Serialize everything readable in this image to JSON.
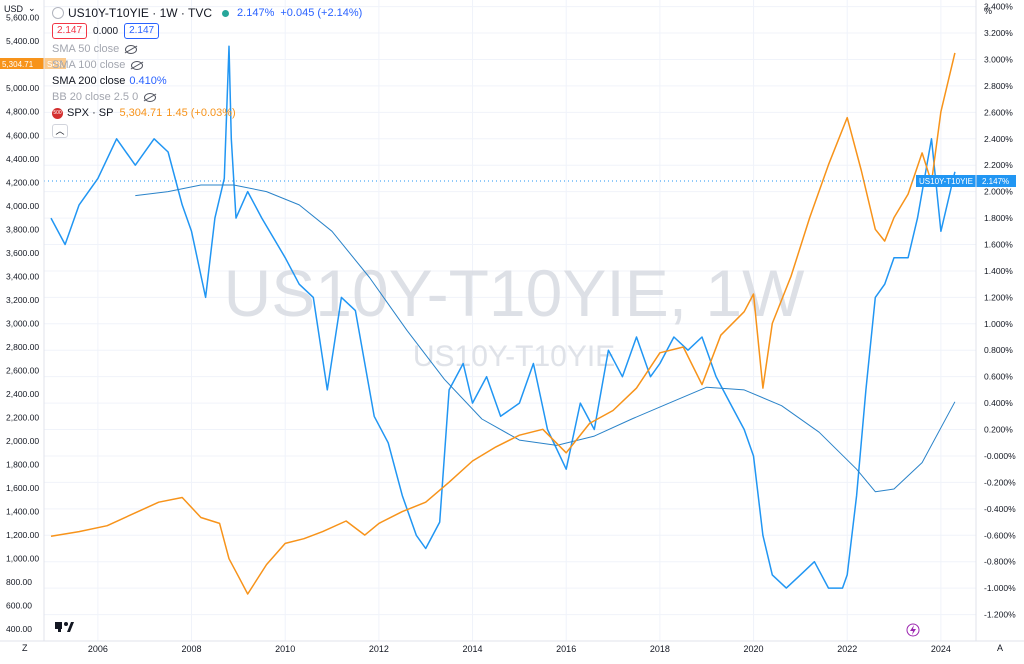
{
  "header": {
    "currency_label": "USD",
    "percent_label": "%",
    "symbol_title": "US10Y-T10YIE · 1W · TVC",
    "last_value": "2.147%",
    "change": "+0.045 (+2.14%)",
    "sell_price": "2.147",
    "spread": "0.000",
    "buy_price": "2.147"
  },
  "indicators": {
    "sma50": "SMA 50 close",
    "sma100": "SMA 100 close",
    "sma200": "SMA 200 close",
    "sma200_value": "0.410%",
    "bb": "BB 20 close 2.5 0",
    "spx_label": "SPX · SP",
    "spx_value": "5,304.71",
    "spx_change": "1.45 (+0.03%)"
  },
  "watermark": {
    "big": "US10Y-T10YIE, 1W",
    "small": "US10Y-T10YIE"
  },
  "price_tags": {
    "left_value": "5,304.71",
    "left_label": "SPX",
    "right_label": "US10Y-T10YIE",
    "right_value": "2.147%"
  },
  "footer": {
    "z_label": "Z",
    "a_label": "A"
  },
  "colors": {
    "blue_series": "#2196f3",
    "orange_series": "#f7931a",
    "sma_line": "#2a83c9",
    "grid": "#f0f3fa"
  },
  "chart_data": {
    "type": "line",
    "title": "US10Y-T10YIE · 1W · TVC",
    "x_ticks": [
      "2006",
      "2008",
      "2010",
      "2012",
      "2014",
      "2016",
      "2018",
      "2020",
      "2022",
      "2024"
    ],
    "left_axis": {
      "label": "USD",
      "range": [
        300,
        5750
      ],
      "ticks": [
        "400.00",
        "600.00",
        "800.00",
        "1,000.00",
        "1,200.00",
        "1,400.00",
        "1,600.00",
        "1,800.00",
        "2,000.00",
        "2,200.00",
        "2,400.00",
        "2,600.00",
        "2,800.00",
        "3,000.00",
        "3,200.00",
        "3,400.00",
        "3,600.00",
        "3,800.00",
        "4,000.00",
        "4,200.00",
        "4,400.00",
        "4,600.00",
        "4,800.00",
        "5,000.00",
        "5,200.00",
        "5,400.00",
        "5,600.00"
      ]
    },
    "right_axis": {
      "label": "%",
      "range": [
        -1.4,
        3.45
      ],
      "ticks": [
        "-1.200%",
        "-1.000%",
        "-0.800%",
        "-0.600%",
        "-0.400%",
        "-0.200%",
        "-0.000%",
        "0.200%",
        "0.400%",
        "0.600%",
        "0.800%",
        "1.000%",
        "1.200%",
        "1.400%",
        "1.600%",
        "1.800%",
        "2.000%",
        "2.200%",
        "2.400%",
        "2.600%",
        "2.800%",
        "3.000%",
        "3.200%",
        "3.400%"
      ]
    },
    "grid": true,
    "series": [
      {
        "name": "US10Y-T10YIE",
        "axis": "right",
        "x": [
          2005.0,
          2005.3,
          2005.6,
          2006.0,
          2006.4,
          2006.8,
          2007.2,
          2007.5,
          2007.8,
          2008.0,
          2008.3,
          2008.5,
          2008.7,
          2008.8,
          2008.85,
          2008.95,
          2009.2,
          2009.5,
          2010.0,
          2010.3,
          2010.6,
          2010.9,
          2011.2,
          2011.5,
          2011.7,
          2011.9,
          2012.2,
          2012.5,
          2012.8,
          2013.0,
          2013.3,
          2013.5,
          2013.8,
          2014.0,
          2014.3,
          2014.6,
          2015.0,
          2015.3,
          2015.6,
          2016.0,
          2016.3,
          2016.6,
          2016.9,
          2017.2,
          2017.5,
          2017.8,
          2018.0,
          2018.3,
          2018.6,
          2018.9,
          2019.2,
          2019.5,
          2019.8,
          2020.0,
          2020.2,
          2020.4,
          2020.7,
          2021.0,
          2021.3,
          2021.6,
          2021.9,
          2022.0,
          2022.2,
          2022.4,
          2022.6,
          2022.8,
          2023.0,
          2023.3,
          2023.5,
          2023.8,
          2024.0,
          2024.3
        ],
        "y": [
          1.8,
          1.6,
          1.9,
          2.1,
          2.4,
          2.2,
          2.4,
          2.3,
          1.9,
          1.7,
          1.2,
          1.8,
          2.1,
          3.1,
          2.4,
          1.8,
          2.0,
          1.8,
          1.5,
          1.3,
          1.2,
          0.5,
          1.2,
          1.1,
          0.7,
          0.3,
          0.1,
          -0.3,
          -0.6,
          -0.7,
          -0.5,
          0.5,
          0.7,
          0.4,
          0.6,
          0.3,
          0.4,
          0.7,
          0.2,
          -0.1,
          0.4,
          0.2,
          0.8,
          0.6,
          0.9,
          0.6,
          0.7,
          0.9,
          0.8,
          0.9,
          0.6,
          0.4,
          0.2,
          0.0,
          -0.6,
          -0.9,
          -1.0,
          -0.9,
          -0.8,
          -1.0,
          -1.0,
          -0.9,
          -0.3,
          0.5,
          1.2,
          1.3,
          1.5,
          1.5,
          1.8,
          2.4,
          1.7,
          2.15
        ]
      },
      {
        "name": "SMA 200 close",
        "axis": "right",
        "x": [
          2006.8,
          2007.5,
          2008.2,
          2008.9,
          2009.6,
          2010.3,
          2011.0,
          2011.8,
          2012.6,
          2013.4,
          2014.2,
          2015.0,
          2015.8,
          2016.6,
          2017.4,
          2018.2,
          2019.0,
          2019.8,
          2020.6,
          2021.4,
          2022.2,
          2022.6,
          2023.0,
          2023.6,
          2024.3
        ],
        "y": [
          1.97,
          2.0,
          2.05,
          2.05,
          2.0,
          1.9,
          1.7,
          1.35,
          0.95,
          0.58,
          0.28,
          0.12,
          0.08,
          0.15,
          0.28,
          0.4,
          0.52,
          0.5,
          0.38,
          0.18,
          -0.1,
          -0.27,
          -0.25,
          -0.05,
          0.41
        ]
      },
      {
        "name": "SPX · SP",
        "axis": "left",
        "x": [
          2005.0,
          2005.6,
          2006.2,
          2006.8,
          2007.3,
          2007.8,
          2008.2,
          2008.6,
          2008.8,
          2009.0,
          2009.2,
          2009.6,
          2010.0,
          2010.4,
          2010.8,
          2011.3,
          2011.7,
          2012.0,
          2012.5,
          2013.0,
          2013.5,
          2014.0,
          2014.5,
          2015.0,
          2015.5,
          2016.0,
          2016.5,
          2017.0,
          2017.5,
          2018.0,
          2018.5,
          2018.9,
          2019.3,
          2019.8,
          2020.0,
          2020.2,
          2020.4,
          2020.8,
          2021.2,
          2021.6,
          2022.0,
          2022.3,
          2022.6,
          2022.8,
          2023.0,
          2023.3,
          2023.6,
          2023.8,
          2024.0,
          2024.3
        ],
        "y": [
          1190,
          1230,
          1280,
          1390,
          1480,
          1520,
          1350,
          1300,
          1000,
          850,
          700,
          950,
          1130,
          1170,
          1230,
          1320,
          1200,
          1300,
          1400,
          1480,
          1650,
          1830,
          1950,
          2050,
          2100,
          1900,
          2150,
          2260,
          2450,
          2750,
          2800,
          2480,
          2900,
          3100,
          3250,
          2450,
          3000,
          3400,
          3900,
          4350,
          4750,
          4300,
          3800,
          3700,
          3900,
          4100,
          4450,
          4200,
          4800,
          5300
        ]
      }
    ]
  }
}
